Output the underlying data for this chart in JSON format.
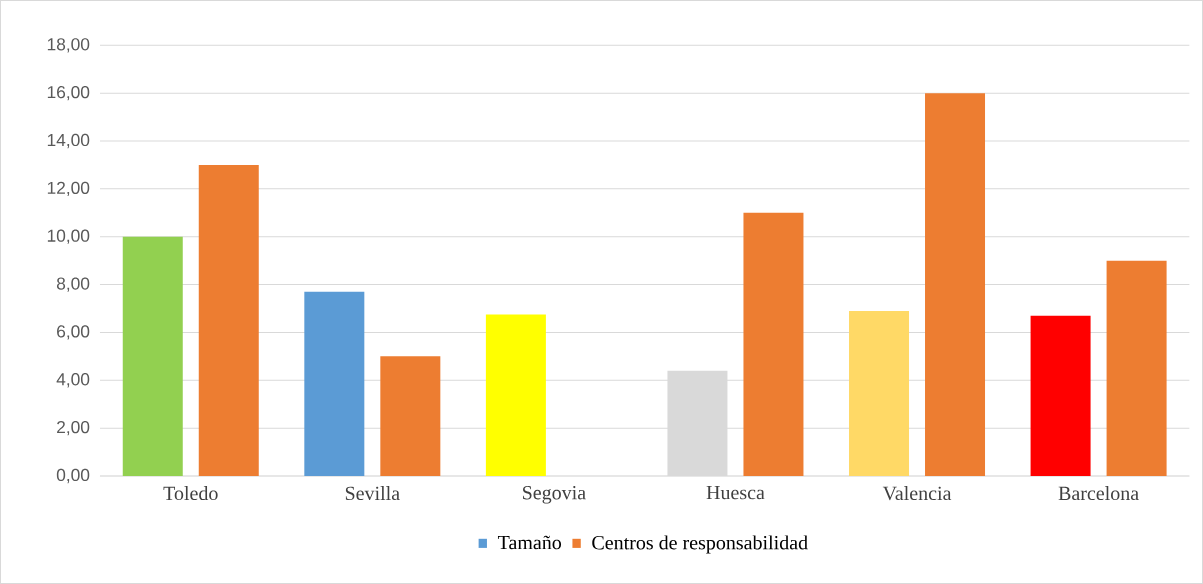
{
  "chart_data": {
    "type": "bar",
    "categories": [
      "Toledo",
      "Sevilla",
      "Segovia",
      "Huesca",
      "Valencia",
      "Barcelona"
    ],
    "series": [
      {
        "name": "Tamaño",
        "color": "#5b9bd5",
        "colors": [
          "#92d050",
          "#5b9bd5",
          "#ffff00",
          "#d9d9d9",
          "#ffd966",
          "#ff0000"
        ],
        "values": [
          10.0,
          7.7,
          6.75,
          4.4,
          6.9,
          6.7
        ]
      },
      {
        "name": "Centros de responsabilidad",
        "color": "#ed7d31",
        "values": [
          13,
          5,
          null,
          11,
          16,
          9
        ]
      }
    ],
    "ylim": [
      0,
      18
    ],
    "yticks": [
      {
        "value": 0,
        "label": "0,00"
      },
      {
        "value": 2,
        "label": "2,00"
      },
      {
        "value": 4,
        "label": "4,00"
      },
      {
        "value": 6,
        "label": "6,00"
      },
      {
        "value": 8,
        "label": "8,00"
      },
      {
        "value": 10,
        "label": "10,00"
      },
      {
        "value": 12,
        "label": "12,00"
      },
      {
        "value": 14,
        "label": "14,00"
      },
      {
        "value": 16,
        "label": "16,00"
      },
      {
        "value": 18,
        "label": "18,00"
      }
    ],
    "grid": "y",
    "legend": "bottom"
  }
}
